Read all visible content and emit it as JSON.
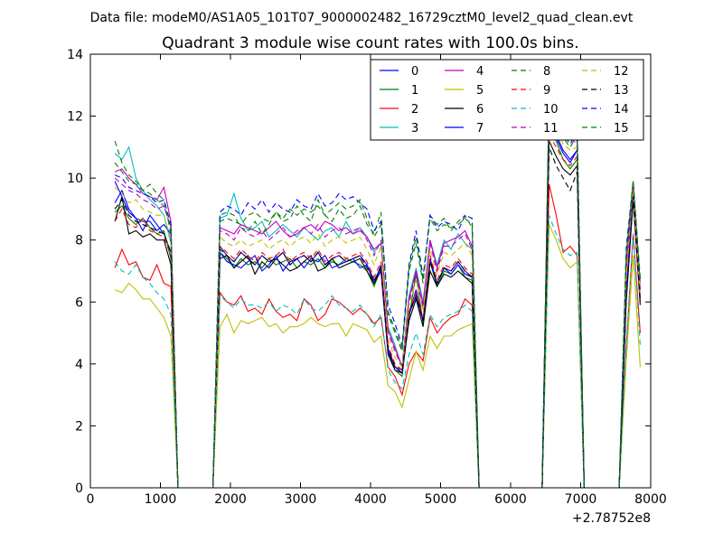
{
  "chart_data": {
    "type": "line",
    "suptitle": "Data file: modeM0/AS1A05_101T07_9000002482_16729cztM0_level2_quad_clean.evt",
    "title": "Quadrant 3 module wise count rates with 100.0s bins.",
    "xlabel": "",
    "ylabel": "",
    "x_offset_label": "+2.78752e8",
    "xlim": [
      0,
      8000
    ],
    "ylim": [
      0,
      14
    ],
    "xticks": [
      "0",
      "1000",
      "2000",
      "3000",
      "4000",
      "5000",
      "6000",
      "7000",
      "8000"
    ],
    "yticks": [
      "0",
      "2",
      "4",
      "6",
      "8",
      "10",
      "12",
      "14"
    ],
    "legend_position": "top-right",
    "x": [
      350,
      450,
      550,
      650,
      750,
      850,
      950,
      1050,
      1150,
      1250,
      1350,
      1450,
      1550,
      1650,
      1750,
      1850,
      1950,
      2050,
      2150,
      2250,
      2350,
      2450,
      2550,
      2650,
      2750,
      2850,
      2950,
      3050,
      3150,
      3250,
      3350,
      3450,
      3550,
      3650,
      3750,
      3850,
      3950,
      4050,
      4150,
      4250,
      4350,
      4450,
      4550,
      4650,
      4750,
      4850,
      4950,
      5050,
      5150,
      5250,
      5350,
      5450,
      5550,
      5650,
      5750,
      5850,
      5950,
      6050,
      6150,
      6250,
      6350,
      6450,
      6550,
      6650,
      6750,
      6850,
      6950,
      7050,
      7150,
      7250,
      7350,
      7450,
      7550,
      7650,
      7750,
      7850
    ],
    "segments": [
      {
        "name": "A",
        "start": 0,
        "len": 9
      },
      {
        "name": "B",
        "start": 15,
        "len": 37
      },
      {
        "name": "C",
        "start": 62,
        "len": 5
      },
      {
        "name": "D",
        "start": 73,
        "len": 3
      }
    ],
    "series": [
      {
        "name": "0",
        "color": "#0000ff",
        "dash": false,
        "A": [
          9.2,
          9.6,
          9.0,
          8.7,
          8.3,
          8.8,
          8.5,
          8.2,
          7.6
        ],
        "B": [
          7.8,
          7.5,
          7.3,
          7.6,
          7.4,
          7.2,
          7.5,
          7.3,
          7.4,
          7.6,
          7.2,
          7.4,
          7.5,
          7.3,
          7.6,
          7.2,
          7.4,
          7.5,
          7.3,
          7.4,
          7.5,
          7.2,
          6.6,
          7.2,
          4.5,
          3.9,
          3.8,
          5.6,
          6.2,
          5.4,
          7.4,
          6.6,
          7.1,
          7.0,
          7.3,
          7.0,
          6.8
        ],
        "C": [
          11.8,
          11.3,
          10.8,
          10.5,
          10.9
        ],
        "D": [
          6.3,
          9.6,
          6.2
        ]
      },
      {
        "name": "1",
        "color": "#008000",
        "dash": false,
        "A": [
          8.9,
          9.1,
          8.7,
          8.5,
          8.7,
          8.4,
          8.2,
          8.3,
          7.4
        ],
        "B": [
          7.6,
          7.4,
          7.1,
          7.4,
          7.2,
          7.3,
          7.1,
          7.4,
          7.2,
          7.3,
          7.4,
          7.1,
          7.3,
          7.2,
          7.4,
          7.1,
          7.3,
          7.2,
          7.4,
          7.3,
          7.2,
          7.0,
          6.5,
          7.1,
          4.4,
          3.8,
          3.6,
          5.5,
          6.9,
          5.3,
          7.3,
          6.5,
          7.0,
          6.9,
          7.2,
          6.8,
          6.7
        ],
        "C": [
          11.6,
          11.2,
          10.6,
          10.3,
          10.6
        ],
        "D": [
          6.1,
          9.4,
          6.0
        ]
      },
      {
        "name": "2",
        "color": "#ff0000",
        "dash": false,
        "A": [
          7.1,
          7.7,
          7.2,
          7.3,
          6.8,
          6.7,
          7.2,
          6.6,
          6.5
        ],
        "B": [
          6.3,
          6.0,
          5.9,
          6.2,
          5.7,
          5.8,
          5.6,
          6.1,
          5.7,
          5.5,
          5.6,
          5.4,
          6.1,
          5.9,
          5.4,
          5.6,
          6.1,
          6.0,
          5.8,
          5.6,
          5.8,
          5.6,
          5.3,
          5.5,
          3.9,
          3.6,
          3.0,
          4.0,
          4.4,
          4.1,
          5.5,
          5.0,
          5.3,
          5.5,
          5.6,
          6.1,
          5.9
        ],
        "C": [
          9.8,
          8.8,
          7.6,
          7.8,
          7.5
        ],
        "D": [
          4.5,
          8.2,
          5.0
        ]
      },
      {
        "name": "3",
        "color": "#00bfbf",
        "dash": false,
        "A": [
          10.8,
          10.6,
          11.0,
          10.0,
          9.6,
          9.3,
          9.1,
          8.8,
          7.9
        ],
        "B": [
          8.7,
          8.8,
          9.5,
          8.7,
          8.3,
          8.4,
          8.6,
          8.1,
          8.3,
          8.5,
          8.3,
          8.1,
          8.4,
          8.2,
          8.0,
          8.3,
          8.4,
          8.1,
          8.6,
          8.2,
          8.4,
          8.1,
          7.6,
          7.9,
          5.2,
          4.6,
          3.9,
          6.2,
          7.1,
          6.0,
          8.0,
          7.2,
          8.0,
          7.7,
          8.2,
          7.9,
          7.7
        ],
        "C": [
          12.6,
          12.1,
          11.7,
          11.4,
          11.2
        ],
        "D": [
          7.1,
          9.7,
          6.4
        ]
      },
      {
        "name": "4",
        "color": "#bf00bf",
        "dash": false,
        "A": [
          10.2,
          10.3,
          10.0,
          9.8,
          9.5,
          9.4,
          9.3,
          9.7,
          8.6
        ],
        "B": [
          8.4,
          8.3,
          8.2,
          8.5,
          8.4,
          8.3,
          8.2,
          8.4,
          8.6,
          8.3,
          8.1,
          8.2,
          8.4,
          8.5,
          8.3,
          8.6,
          8.5,
          8.3,
          8.4,
          8.2,
          8.3,
          8.1,
          7.7,
          7.9,
          5.1,
          4.5,
          3.9,
          6.1,
          7.0,
          5.9,
          8.0,
          7.1,
          7.9,
          8.0,
          8.1,
          8.3,
          7.8
        ],
        "C": [
          12.7,
          12.2,
          11.6,
          11.5,
          11.3
        ],
        "D": [
          7.2,
          9.8,
          6.4
        ]
      },
      {
        "name": "5",
        "color": "#bfbf00",
        "dash": false,
        "A": [
          6.4,
          6.3,
          6.6,
          6.4,
          6.1,
          6.1,
          5.8,
          5.5,
          4.9
        ],
        "B": [
          5.2,
          5.6,
          5.0,
          5.4,
          5.3,
          5.4,
          5.5,
          5.2,
          5.3,
          5.0,
          5.2,
          5.2,
          5.3,
          5.5,
          5.3,
          5.2,
          5.3,
          5.3,
          4.9,
          5.3,
          5.2,
          5.1,
          4.7,
          4.9,
          3.3,
          3.1,
          2.6,
          3.5,
          4.4,
          3.8,
          4.9,
          4.5,
          4.9,
          4.9,
          5.1,
          5.2,
          5.3
        ],
        "C": [
          8.5,
          8.0,
          7.4,
          7.1,
          7.3
        ],
        "D": [
          4.1,
          7.5,
          3.9
        ]
      },
      {
        "name": "6",
        "color": "#000000",
        "dash": false,
        "A": [
          8.6,
          9.4,
          8.2,
          8.3,
          8.1,
          8.2,
          8.0,
          8.0,
          7.2
        ],
        "B": [
          7.4,
          7.5,
          7.1,
          7.3,
          7.5,
          6.9,
          7.3,
          7.1,
          7.4,
          7.2,
          7.0,
          7.1,
          7.3,
          7.5,
          7.0,
          7.1,
          7.4,
          7.1,
          7.2,
          7.3,
          7.4,
          7.0,
          6.6,
          7.0,
          4.3,
          3.8,
          3.7,
          5.4,
          6.1,
          5.2,
          7.0,
          6.5,
          6.9,
          6.8,
          7.0,
          6.8,
          6.6
        ],
        "C": [
          11.2,
          10.7,
          10.3,
          10.1,
          10.4
        ],
        "D": [
          6.0,
          9.3,
          5.9
        ]
      },
      {
        "name": "7",
        "color": "#0000ff",
        "dash": false,
        "A": [
          9.9,
          9.4,
          8.9,
          8.7,
          8.6,
          8.6,
          8.3,
          8.5,
          8.2
        ],
        "B": [
          7.6,
          7.3,
          7.2,
          7.1,
          7.3,
          7.5,
          7.0,
          7.2,
          7.5,
          7.0,
          7.3,
          7.4,
          7.1,
          7.4,
          7.3,
          7.5,
          7.1,
          7.2,
          7.3,
          7.4,
          7.1,
          7.2,
          6.7,
          7.0,
          4.4,
          3.9,
          3.7,
          5.6,
          6.4,
          5.4,
          7.3,
          6.6,
          7.1,
          6.9,
          7.2,
          6.9,
          6.8
        ],
        "C": [
          11.9,
          11.4,
          10.9,
          10.6,
          10.9
        ],
        "D": [
          6.2,
          9.5,
          6.1
        ]
      },
      {
        "name": "8",
        "color": "#008000",
        "dash": true,
        "A": [
          11.2,
          10.5,
          10.1,
          9.9,
          9.6,
          9.8,
          9.5,
          9.3,
          8.2
        ],
        "B": [
          8.8,
          8.9,
          8.8,
          8.4,
          8.3,
          8.6,
          8.2,
          8.5,
          8.9,
          8.6,
          8.7,
          9.1,
          8.8,
          8.6,
          9.3,
          8.8,
          8.6,
          9.0,
          8.7,
          8.8,
          9.1,
          8.5,
          8.2,
          8.9,
          5.6,
          5.0,
          4.4,
          7.0,
          7.9,
          6.6,
          8.8,
          8.5,
          8.7,
          8.3,
          8.6,
          8.8,
          8.4
        ],
        "C": [
          12.3,
          11.8,
          11.3,
          11.0,
          11.4
        ],
        "D": [
          7.5,
          9.9,
          6.6
        ]
      },
      {
        "name": "9",
        "color": "#ff0000",
        "dash": true,
        "A": [
          8.6,
          9.0,
          8.5,
          8.4,
          8.7,
          8.3,
          8.2,
          8.1,
          7.5
        ],
        "B": [
          7.8,
          7.6,
          7.4,
          7.7,
          7.5,
          7.3,
          7.6,
          7.4,
          7.5,
          7.7,
          7.3,
          7.5,
          7.6,
          7.4,
          7.7,
          7.3,
          7.5,
          7.6,
          7.4,
          7.5,
          7.6,
          7.3,
          6.8,
          7.3,
          4.6,
          4.0,
          3.8,
          5.7,
          6.3,
          5.5,
          7.5,
          6.7,
          7.2,
          7.1,
          7.4,
          7.1,
          6.9
        ],
        "C": [
          11.4,
          11.0,
          10.6,
          10.4,
          10.7
        ],
        "D": [
          6.4,
          9.5,
          6.1
        ]
      },
      {
        "name": "10",
        "color": "#00bfbf",
        "dash": true,
        "A": [
          7.3,
          7.0,
          6.9,
          7.2,
          6.8,
          6.6,
          6.3,
          6.1,
          5.6
        ],
        "B": [
          6.2,
          6.0,
          5.8,
          6.1,
          5.9,
          5.9,
          5.8,
          6.0,
          5.7,
          5.9,
          5.8,
          5.6,
          6.1,
          5.8,
          5.7,
          5.9,
          6.2,
          5.9,
          5.8,
          5.7,
          5.9,
          5.6,
          5.2,
          5.6,
          3.8,
          3.4,
          3.2,
          4.3,
          5.0,
          4.3,
          5.6,
          5.2,
          5.5,
          5.6,
          5.7,
          5.9,
          5.7
        ],
        "C": [
          8.8,
          8.2,
          7.7,
          7.5,
          7.6
        ],
        "D": [
          4.6,
          8.2,
          4.6
        ]
      },
      {
        "name": "11",
        "color": "#bf00bf",
        "dash": true,
        "A": [
          10.0,
          9.8,
          9.6,
          9.5,
          9.3,
          9.2,
          9.0,
          9.1,
          8.4
        ],
        "B": [
          8.3,
          8.2,
          8.0,
          8.4,
          8.2,
          8.1,
          8.3,
          8.0,
          8.2,
          8.4,
          8.1,
          8.3,
          8.4,
          8.2,
          8.5,
          8.1,
          8.3,
          8.4,
          8.2,
          8.3,
          8.4,
          8.0,
          7.5,
          8.0,
          5.0,
          4.4,
          3.9,
          6.0,
          6.9,
          5.8,
          7.9,
          7.0,
          7.8,
          7.8,
          8.0,
          8.2,
          7.7
        ],
        "C": [
          12.5,
          12.0,
          11.5,
          11.3,
          11.1
        ],
        "D": [
          7.0,
          9.7,
          6.3
        ]
      },
      {
        "name": "12",
        "color": "#bfbf00",
        "dash": true,
        "A": [
          9.7,
          9.5,
          9.2,
          9.3,
          9.0,
          8.9,
          8.8,
          8.8,
          8.0
        ],
        "B": [
          8.1,
          7.9,
          7.8,
          8.0,
          7.8,
          7.9,
          8.0,
          7.7,
          7.9,
          8.0,
          7.8,
          8.0,
          8.1,
          7.9,
          8.2,
          7.8,
          8.0,
          8.1,
          7.9,
          8.0,
          8.1,
          7.7,
          7.2,
          7.8,
          4.8,
          4.2,
          3.9,
          5.9,
          6.7,
          5.7,
          7.7,
          6.9,
          7.6,
          7.5,
          7.7,
          7.9,
          7.5
        ],
        "C": [
          12.1,
          11.6,
          11.1,
          10.9,
          11.0
        ],
        "D": [
          6.8,
          9.6,
          6.2
        ]
      },
      {
        "name": "13",
        "color": "#000000",
        "dash": true,
        "A": [
          9.0,
          9.3,
          8.8,
          8.6,
          8.5,
          8.4,
          8.3,
          8.2,
          7.6
        ],
        "B": [
          7.7,
          7.5,
          7.3,
          7.6,
          7.4,
          7.2,
          7.5,
          7.3,
          7.4,
          7.6,
          7.2,
          7.4,
          7.5,
          7.3,
          7.6,
          7.2,
          7.4,
          7.5,
          7.3,
          7.4,
          7.5,
          7.1,
          6.7,
          7.1,
          4.5,
          3.9,
          3.7,
          5.6,
          6.2,
          5.4,
          7.3,
          6.6,
          7.1,
          7.0,
          7.3,
          7.0,
          6.8
        ],
        "C": [
          11.0,
          10.4,
          10.0,
          9.6,
          10.2
        ],
        "D": [
          6.1,
          9.4,
          6.0
        ]
      },
      {
        "name": "14",
        "color": "#0000ff",
        "dash": true,
        "A": [
          10.1,
          10.0,
          9.7,
          9.6,
          9.5,
          9.4,
          9.2,
          9.3,
          8.5
        ],
        "B": [
          8.9,
          9.1,
          9.0,
          8.8,
          9.2,
          9.0,
          9.3,
          8.9,
          9.2,
          9.0,
          8.9,
          9.3,
          9.1,
          9.0,
          9.5,
          9.1,
          9.2,
          9.5,
          9.3,
          9.4,
          9.2,
          9.0,
          8.3,
          8.6,
          5.9,
          5.3,
          4.6,
          7.2,
          8.3,
          6.8,
          8.8,
          8.4,
          8.6,
          8.5,
          8.3,
          8.8,
          8.7
        ],
        "C": [
          12.4,
          11.9,
          11.4,
          11.1,
          11.5
        ],
        "D": [
          7.6,
          9.9,
          6.7
        ]
      },
      {
        "name": "15",
        "color": "#008000",
        "dash": true,
        "A": [
          10.5,
          10.2,
          9.9,
          9.8,
          9.6,
          9.5,
          9.3,
          9.1,
          8.4
        ],
        "B": [
          8.6,
          8.7,
          8.6,
          8.5,
          8.8,
          8.9,
          8.7,
          8.6,
          8.9,
          8.7,
          9.0,
          8.8,
          9.0,
          8.9,
          9.1,
          8.8,
          9.0,
          9.2,
          9.0,
          9.1,
          9.3,
          8.7,
          8.1,
          8.5,
          5.7,
          5.1,
          4.5,
          7.1,
          8.1,
          6.7,
          8.7,
          8.3,
          8.5,
          8.4,
          8.5,
          8.7,
          8.5
        ],
        "C": [
          12.9,
          12.4,
          11.9,
          11.6,
          11.8
        ],
        "D": [
          7.8,
          9.9,
          6.8
        ]
      }
    ]
  }
}
